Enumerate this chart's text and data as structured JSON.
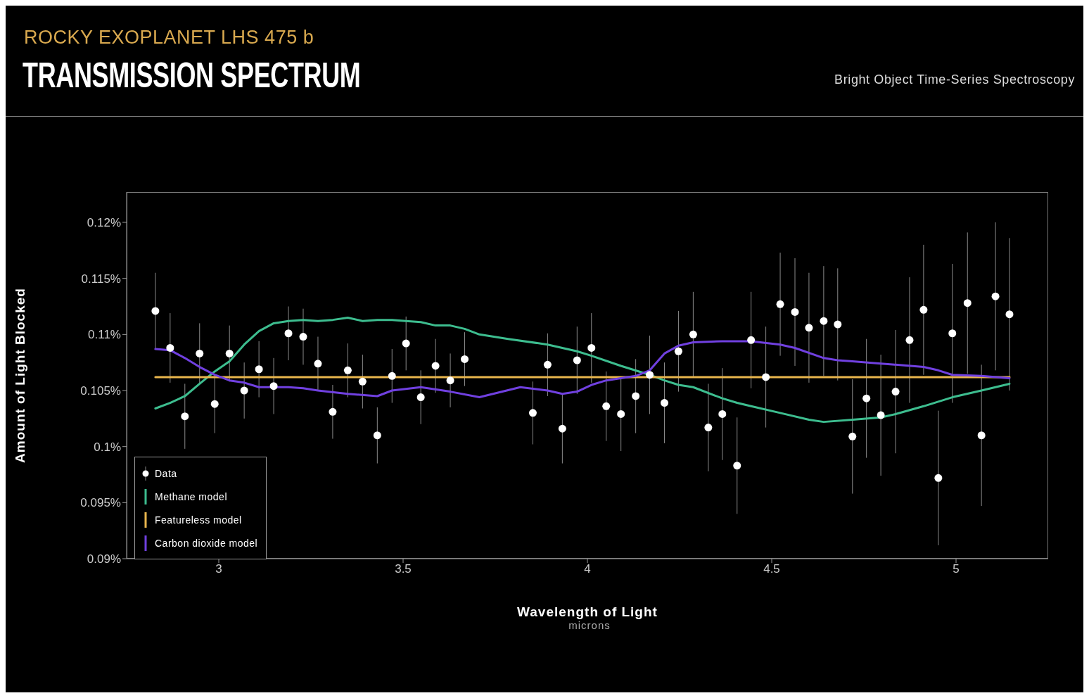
{
  "chart_data": {
    "type": "scatter",
    "subtitle": "ROCKY EXOPLANET LHS 475 b",
    "title": "TRANSMISSION SPECTRUM",
    "annotations": [
      "Bright Object Time-Series Spectroscopy",
      "microns"
    ],
    "xlabel": "Wavelength of Light",
    "ylabel": "Amount of Light Blocked",
    "xlim": [
      2.75,
      5.25
    ],
    "xticks": [
      3,
      3.5,
      4,
      4.5,
      5
    ],
    "ylim": [
      0.09,
      0.1227
    ],
    "yticks": [
      {
        "value": 0.09,
        "label": "0.09%"
      },
      {
        "value": 0.095,
        "label": "0.095%"
      },
      {
        "value": 0.1,
        "label": "0.1%"
      },
      {
        "value": 0.105,
        "label": "0.105%"
      },
      {
        "value": 0.11,
        "label": "0.11%"
      },
      {
        "value": 0.115,
        "label": "0.115%"
      },
      {
        "value": 0.12,
        "label": "0.12%"
      }
    ],
    "grid": false,
    "legend": "bottom left",
    "series": [
      {
        "name": "Data",
        "color": "#ffffff",
        "marker": "circle",
        "x": [
          2.828,
          2.868,
          2.908,
          2.948,
          2.989,
          3.029,
          3.069,
          3.109,
          3.149,
          3.189,
          3.229,
          3.269,
          3.309,
          3.35,
          3.39,
          3.43,
          3.47,
          3.508,
          3.548,
          3.588,
          3.628,
          3.667,
          3.852,
          3.892,
          3.932,
          3.972,
          4.011,
          4.051,
          4.091,
          4.131,
          4.169,
          4.209,
          4.247,
          4.287,
          4.328,
          4.366,
          4.406,
          4.444,
          4.484,
          4.523,
          4.563,
          4.601,
          4.641,
          4.679,
          4.719,
          4.757,
          4.796,
          4.836,
          4.874,
          4.912,
          4.952,
          4.99,
          5.031,
          5.069,
          5.107,
          5.145
        ],
        "values": [
          0.1121,
          0.1088,
          0.1027,
          0.1083,
          0.1038,
          0.1083,
          0.105,
          0.1069,
          0.1054,
          0.1101,
          0.1098,
          0.1074,
          0.1031,
          0.1068,
          0.1058,
          0.101,
          0.1063,
          0.1092,
          0.1044,
          0.1072,
          0.1059,
          0.1078,
          0.103,
          0.1073,
          0.1016,
          0.1077,
          0.1088,
          0.1036,
          0.1029,
          0.1045,
          0.1064,
          0.1039,
          0.1085,
          0.11,
          0.1017,
          0.1029,
          0.0983,
          0.1095,
          0.1062,
          0.1127,
          0.112,
          0.1106,
          0.1112,
          0.1109,
          0.1009,
          0.1043,
          0.1028,
          0.1049,
          0.1095,
          0.1122,
          0.0972,
          0.1101,
          0.1128,
          0.101,
          0.1134,
          0.1118
        ],
        "errors": [
          0.0034,
          0.0031,
          0.0029,
          0.0027,
          0.0026,
          0.0025,
          0.0025,
          0.0025,
          0.0025,
          0.0024,
          0.0025,
          0.0024,
          0.0024,
          0.0024,
          0.0024,
          0.0025,
          0.0024,
          0.0024,
          0.0024,
          0.0024,
          0.0024,
          0.0024,
          0.0028,
          0.0028,
          0.0031,
          0.003,
          0.0031,
          0.0031,
          0.0033,
          0.0033,
          0.0035,
          0.0036,
          0.0036,
          0.0038,
          0.0039,
          0.0041,
          0.0043,
          0.0043,
          0.0045,
          0.0046,
          0.0048,
          0.0049,
          0.0049,
          0.005,
          0.0051,
          0.0053,
          0.0054,
          0.0055,
          0.0056,
          0.0058,
          0.006,
          0.0062,
          0.0063,
          0.0063,
          0.0066,
          0.0068
        ]
      },
      {
        "name": "Methane model",
        "type": "line",
        "color": "#3dbd8f",
        "x": [
          2.828,
          2.868,
          2.908,
          2.948,
          2.989,
          3.029,
          3.069,
          3.109,
          3.149,
          3.189,
          3.229,
          3.269,
          3.309,
          3.35,
          3.39,
          3.43,
          3.47,
          3.508,
          3.548,
          3.588,
          3.628,
          3.667,
          3.707,
          3.785,
          3.892,
          3.972,
          4.011,
          4.091,
          4.169,
          4.209,
          4.247,
          4.287,
          4.366,
          4.406,
          4.444,
          4.523,
          4.601,
          4.641,
          4.719,
          4.796,
          4.836,
          4.912,
          4.99,
          5.069,
          5.107,
          5.145
        ],
        "values": [
          0.1034,
          0.1039,
          0.1045,
          0.1056,
          0.1067,
          0.1076,
          0.1091,
          0.1103,
          0.111,
          0.1112,
          0.1113,
          0.1112,
          0.1113,
          0.1115,
          0.1112,
          0.1113,
          0.1113,
          0.1112,
          0.1111,
          0.1108,
          0.1108,
          0.1105,
          0.11,
          0.1096,
          0.1091,
          0.1085,
          0.1081,
          0.1072,
          0.1064,
          0.1059,
          0.1055,
          0.1053,
          0.1043,
          0.1039,
          0.1036,
          0.103,
          0.1024,
          0.1022,
          0.1024,
          0.1026,
          0.1029,
          0.1036,
          0.1044,
          0.105,
          0.1053,
          0.1056
        ]
      },
      {
        "name": "Featureless model",
        "type": "line",
        "color": "#e8b54d",
        "x": [
          2.828,
          5.145
        ],
        "values": [
          0.1062,
          0.1062
        ]
      },
      {
        "name": "Carbon dioxide model",
        "type": "line",
        "color": "#7040e0",
        "x": [
          2.828,
          2.868,
          2.908,
          2.948,
          2.989,
          3.029,
          3.069,
          3.109,
          3.149,
          3.189,
          3.229,
          3.269,
          3.35,
          3.43,
          3.47,
          3.548,
          3.628,
          3.707,
          3.818,
          3.892,
          3.932,
          3.972,
          4.011,
          4.051,
          4.091,
          4.131,
          4.169,
          4.209,
          4.247,
          4.287,
          4.366,
          4.444,
          4.523,
          4.563,
          4.641,
          4.679,
          4.719,
          4.796,
          4.836,
          4.912,
          4.952,
          4.99,
          5.069,
          5.145
        ],
        "values": [
          0.1087,
          0.1086,
          0.1079,
          0.1071,
          0.1064,
          0.1059,
          0.1057,
          0.1053,
          0.1053,
          0.1053,
          0.1052,
          0.105,
          0.1047,
          0.1045,
          0.105,
          0.1053,
          0.1049,
          0.1044,
          0.1053,
          0.105,
          0.1047,
          0.1049,
          0.1055,
          0.1059,
          0.1061,
          0.1063,
          0.1068,
          0.1083,
          0.109,
          0.1093,
          0.1094,
          0.1094,
          0.1091,
          0.1088,
          0.1079,
          0.1077,
          0.1076,
          0.1074,
          0.1073,
          0.1071,
          0.1068,
          0.1064,
          0.1063,
          0.1061
        ]
      }
    ]
  }
}
